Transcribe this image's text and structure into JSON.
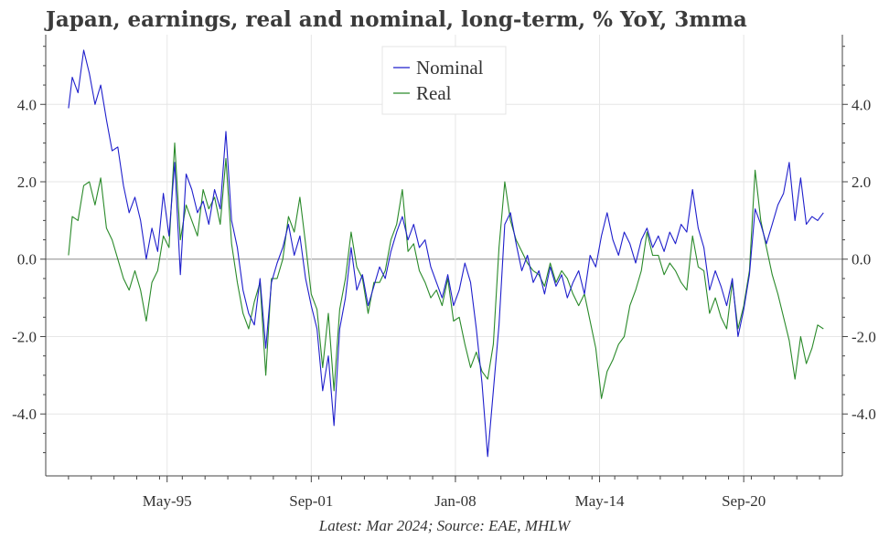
{
  "title": "Japan, earnings, real and nominal, long-term, % YoY, 3mma",
  "source_note": "Latest: Mar 2024; Source: EAE, MHLW",
  "chart_data": {
    "type": "line",
    "title": "Japan, earnings, real and nominal, long-term, % YoY, 3mma",
    "xlabel": "",
    "ylabel": "",
    "x_tick_labels": [
      "May-95",
      "Sep-01",
      "Jan-08",
      "May-14",
      "Sep-20"
    ],
    "x_tick_values": [
      "1995-05",
      "2001-09",
      "2008-01",
      "2014-05",
      "2020-09"
    ],
    "x_range": [
      "1990-01",
      "2025-01"
    ],
    "ylim": [
      -5.6,
      5.8
    ],
    "y_ticks": [
      -4.0,
      -2.0,
      0.0,
      2.0,
      4.0
    ],
    "y_tick_labels": [
      "-4.0",
      "-2.0",
      "0.0",
      "2.0",
      "4.0"
    ],
    "y_axis_sides": "left and right",
    "grid": true,
    "zero_line": true,
    "legend_position": "top-center",
    "series": [
      {
        "name": "Nominal",
        "color": "#1f1fcc",
        "points": [
          [
            "1991-01",
            3.9
          ],
          [
            "1991-03",
            4.7
          ],
          [
            "1991-06",
            4.3
          ],
          [
            "1991-09",
            5.4
          ],
          [
            "1991-12",
            4.8
          ],
          [
            "1992-03",
            4.0
          ],
          [
            "1992-06",
            4.5
          ],
          [
            "1992-09",
            3.6
          ],
          [
            "1992-12",
            2.8
          ],
          [
            "1993-03",
            2.9
          ],
          [
            "1993-06",
            1.9
          ],
          [
            "1993-09",
            1.2
          ],
          [
            "1993-12",
            1.6
          ],
          [
            "1994-03",
            1.0
          ],
          [
            "1994-06",
            0.0
          ],
          [
            "1994-09",
            0.8
          ],
          [
            "1994-12",
            0.2
          ],
          [
            "1995-03",
            1.7
          ],
          [
            "1995-06",
            0.6
          ],
          [
            "1995-09",
            2.5
          ],
          [
            "1995-12",
            -0.4
          ],
          [
            "1996-03",
            2.2
          ],
          [
            "1996-06",
            1.8
          ],
          [
            "1996-09",
            1.2
          ],
          [
            "1996-12",
            1.5
          ],
          [
            "1997-03",
            0.9
          ],
          [
            "1997-06",
            1.8
          ],
          [
            "1997-09",
            1.3
          ],
          [
            "1997-12",
            3.3
          ],
          [
            "1998-03",
            1.0
          ],
          [
            "1998-06",
            0.3
          ],
          [
            "1998-09",
            -0.8
          ],
          [
            "1998-12",
            -1.4
          ],
          [
            "1999-03",
            -1.7
          ],
          [
            "1999-06",
            -0.5
          ],
          [
            "1999-09",
            -2.3
          ],
          [
            "1999-12",
            -0.6
          ],
          [
            "2000-03",
            -0.1
          ],
          [
            "2000-06",
            0.3
          ],
          [
            "2000-09",
            0.9
          ],
          [
            "2000-12",
            0.1
          ],
          [
            "2001-03",
            0.6
          ],
          [
            "2001-06",
            -0.5
          ],
          [
            "2001-09",
            -1.2
          ],
          [
            "2001-12",
            -1.8
          ],
          [
            "2002-03",
            -3.4
          ],
          [
            "2002-06",
            -2.5
          ],
          [
            "2002-09",
            -4.3
          ],
          [
            "2002-12",
            -1.8
          ],
          [
            "2003-03",
            -1.0
          ],
          [
            "2003-06",
            0.3
          ],
          [
            "2003-09",
            -0.8
          ],
          [
            "2003-12",
            -0.4
          ],
          [
            "2004-03",
            -1.2
          ],
          [
            "2004-06",
            -0.7
          ],
          [
            "2004-09",
            -0.2
          ],
          [
            "2004-12",
            -0.5
          ],
          [
            "2005-03",
            0.2
          ],
          [
            "2005-06",
            0.7
          ],
          [
            "2005-09",
            1.1
          ],
          [
            "2005-12",
            0.5
          ],
          [
            "2006-03",
            0.9
          ],
          [
            "2006-06",
            0.3
          ],
          [
            "2006-09",
            0.5
          ],
          [
            "2006-12",
            -0.2
          ],
          [
            "2007-03",
            -0.6
          ],
          [
            "2007-06",
            -1.0
          ],
          [
            "2007-09",
            -0.4
          ],
          [
            "2007-12",
            -1.2
          ],
          [
            "2008-03",
            -0.8
          ],
          [
            "2008-06",
            -0.1
          ],
          [
            "2008-09",
            -0.6
          ],
          [
            "2008-12",
            -1.8
          ],
          [
            "2009-03",
            -3.2
          ],
          [
            "2009-06",
            -5.1
          ],
          [
            "2009-09",
            -3.4
          ],
          [
            "2009-12",
            -1.7
          ],
          [
            "2010-03",
            0.9
          ],
          [
            "2010-06",
            1.2
          ],
          [
            "2010-09",
            0.4
          ],
          [
            "2010-12",
            -0.3
          ],
          [
            "2011-03",
            0.1
          ],
          [
            "2011-06",
            -0.6
          ],
          [
            "2011-09",
            -0.3
          ],
          [
            "2011-12",
            -0.9
          ],
          [
            "2012-03",
            -0.2
          ],
          [
            "2012-06",
            -0.7
          ],
          [
            "2012-09",
            -0.4
          ],
          [
            "2012-12",
            -1.0
          ],
          [
            "2013-03",
            -0.6
          ],
          [
            "2013-06",
            -0.3
          ],
          [
            "2013-09",
            -0.9
          ],
          [
            "2013-12",
            0.1
          ],
          [
            "2014-03",
            -0.2
          ],
          [
            "2014-06",
            0.6
          ],
          [
            "2014-09",
            1.2
          ],
          [
            "2014-12",
            0.5
          ],
          [
            "2015-03",
            0.1
          ],
          [
            "2015-06",
            0.7
          ],
          [
            "2015-09",
            0.4
          ],
          [
            "2015-12",
            -0.1
          ],
          [
            "2016-03",
            0.5
          ],
          [
            "2016-06",
            0.8
          ],
          [
            "2016-09",
            0.3
          ],
          [
            "2016-12",
            0.6
          ],
          [
            "2017-03",
            0.2
          ],
          [
            "2017-06",
            0.7
          ],
          [
            "2017-09",
            0.4
          ],
          [
            "2017-12",
            0.9
          ],
          [
            "2018-03",
            0.7
          ],
          [
            "2018-06",
            1.8
          ],
          [
            "2018-09",
            0.8
          ],
          [
            "2018-12",
            0.3
          ],
          [
            "2019-03",
            -0.8
          ],
          [
            "2019-06",
            -0.3
          ],
          [
            "2019-09",
            -0.7
          ],
          [
            "2019-12",
            -1.2
          ],
          [
            "2020-03",
            -0.5
          ],
          [
            "2020-06",
            -2.0
          ],
          [
            "2020-09",
            -1.3
          ],
          [
            "2020-12",
            -0.4
          ],
          [
            "2021-03",
            1.3
          ],
          [
            "2021-06",
            0.9
          ],
          [
            "2021-09",
            0.4
          ],
          [
            "2021-12",
            0.9
          ],
          [
            "2022-03",
            1.4
          ],
          [
            "2022-06",
            1.7
          ],
          [
            "2022-09",
            2.5
          ],
          [
            "2022-12",
            1.0
          ],
          [
            "2023-03",
            2.1
          ],
          [
            "2023-06",
            0.9
          ],
          [
            "2023-09",
            1.1
          ],
          [
            "2023-12",
            1.0
          ],
          [
            "2024-03",
            1.2
          ]
        ]
      },
      {
        "name": "Real",
        "color": "#2a8a2a",
        "points": [
          [
            "1991-01",
            0.1
          ],
          [
            "1991-03",
            1.1
          ],
          [
            "1991-06",
            1.0
          ],
          [
            "1991-09",
            1.9
          ],
          [
            "1991-12",
            2.0
          ],
          [
            "1992-03",
            1.4
          ],
          [
            "1992-06",
            2.1
          ],
          [
            "1992-09",
            0.8
          ],
          [
            "1992-12",
            0.5
          ],
          [
            "1993-03",
            0.0
          ],
          [
            "1993-06",
            -0.5
          ],
          [
            "1993-09",
            -0.8
          ],
          [
            "1993-12",
            -0.3
          ],
          [
            "1994-03",
            -0.8
          ],
          [
            "1994-06",
            -1.6
          ],
          [
            "1994-09",
            -0.6
          ],
          [
            "1994-12",
            -0.3
          ],
          [
            "1995-03",
            0.6
          ],
          [
            "1995-06",
            0.3
          ],
          [
            "1995-09",
            3.0
          ],
          [
            "1995-12",
            0.5
          ],
          [
            "1996-03",
            1.4
          ],
          [
            "1996-06",
            1.0
          ],
          [
            "1996-09",
            0.6
          ],
          [
            "1996-12",
            1.8
          ],
          [
            "1997-03",
            1.3
          ],
          [
            "1997-06",
            1.6
          ],
          [
            "1997-09",
            0.9
          ],
          [
            "1997-12",
            2.6
          ],
          [
            "1998-03",
            0.4
          ],
          [
            "1998-06",
            -0.6
          ],
          [
            "1998-09",
            -1.4
          ],
          [
            "1998-12",
            -1.8
          ],
          [
            "1999-03",
            -1.1
          ],
          [
            "1999-06",
            -0.6
          ],
          [
            "1999-09",
            -3.0
          ],
          [
            "1999-12",
            -0.5
          ],
          [
            "2000-03",
            -0.5
          ],
          [
            "2000-06",
            0.0
          ],
          [
            "2000-09",
            1.1
          ],
          [
            "2000-12",
            0.7
          ],
          [
            "2001-03",
            1.6
          ],
          [
            "2001-06",
            0.4
          ],
          [
            "2001-09",
            -0.9
          ],
          [
            "2001-12",
            -1.3
          ],
          [
            "2002-03",
            -2.8
          ],
          [
            "2002-06",
            -1.4
          ],
          [
            "2002-09",
            -3.4
          ],
          [
            "2002-12",
            -1.3
          ],
          [
            "2003-03",
            -0.5
          ],
          [
            "2003-06",
            0.7
          ],
          [
            "2003-09",
            -0.2
          ],
          [
            "2003-12",
            -0.5
          ],
          [
            "2004-03",
            -1.4
          ],
          [
            "2004-06",
            -0.6
          ],
          [
            "2004-09",
            -0.6
          ],
          [
            "2004-12",
            -0.3
          ],
          [
            "2005-03",
            0.5
          ],
          [
            "2005-06",
            0.9
          ],
          [
            "2005-09",
            1.8
          ],
          [
            "2005-12",
            0.2
          ],
          [
            "2006-03",
            0.4
          ],
          [
            "2006-06",
            -0.3
          ],
          [
            "2006-09",
            -0.6
          ],
          [
            "2006-12",
            -1.0
          ],
          [
            "2007-03",
            -0.8
          ],
          [
            "2007-06",
            -1.2
          ],
          [
            "2007-09",
            -0.5
          ],
          [
            "2007-12",
            -1.6
          ],
          [
            "2008-03",
            -1.5
          ],
          [
            "2008-06",
            -2.2
          ],
          [
            "2008-09",
            -2.8
          ],
          [
            "2008-12",
            -2.4
          ],
          [
            "2009-03",
            -2.9
          ],
          [
            "2009-06",
            -3.1
          ],
          [
            "2009-09",
            -2.2
          ],
          [
            "2009-12",
            0.3
          ],
          [
            "2010-03",
            2.0
          ],
          [
            "2010-06",
            1.0
          ],
          [
            "2010-09",
            0.5
          ],
          [
            "2010-12",
            0.2
          ],
          [
            "2011-03",
            -0.1
          ],
          [
            "2011-06",
            -0.3
          ],
          [
            "2011-09",
            -0.4
          ],
          [
            "2011-12",
            -0.7
          ],
          [
            "2012-03",
            -0.1
          ],
          [
            "2012-06",
            -0.6
          ],
          [
            "2012-09",
            -0.3
          ],
          [
            "2012-12",
            -0.5
          ],
          [
            "2013-03",
            -0.9
          ],
          [
            "2013-06",
            -1.2
          ],
          [
            "2013-09",
            -0.9
          ],
          [
            "2013-12",
            -1.6
          ],
          [
            "2014-03",
            -2.3
          ],
          [
            "2014-06",
            -3.6
          ],
          [
            "2014-09",
            -2.9
          ],
          [
            "2014-12",
            -2.6
          ],
          [
            "2015-03",
            -2.2
          ],
          [
            "2015-06",
            -2.0
          ],
          [
            "2015-09",
            -1.2
          ],
          [
            "2015-12",
            -0.8
          ],
          [
            "2016-03",
            -0.3
          ],
          [
            "2016-06",
            0.7
          ],
          [
            "2016-09",
            0.1
          ],
          [
            "2016-12",
            0.1
          ],
          [
            "2017-03",
            -0.4
          ],
          [
            "2017-06",
            -0.1
          ],
          [
            "2017-09",
            -0.3
          ],
          [
            "2017-12",
            -0.6
          ],
          [
            "2018-03",
            -0.8
          ],
          [
            "2018-06",
            0.6
          ],
          [
            "2018-09",
            -0.2
          ],
          [
            "2018-12",
            -0.3
          ],
          [
            "2019-03",
            -1.4
          ],
          [
            "2019-06",
            -1.0
          ],
          [
            "2019-09",
            -1.5
          ],
          [
            "2019-12",
            -1.8
          ],
          [
            "2020-03",
            -0.6
          ],
          [
            "2020-06",
            -1.8
          ],
          [
            "2020-09",
            -1.2
          ],
          [
            "2020-12",
            -0.3
          ],
          [
            "2021-03",
            2.3
          ],
          [
            "2021-06",
            1.0
          ],
          [
            "2021-09",
            0.3
          ],
          [
            "2021-12",
            -0.4
          ],
          [
            "2022-03",
            -0.9
          ],
          [
            "2022-06",
            -1.5
          ],
          [
            "2022-09",
            -2.1
          ],
          [
            "2022-12",
            -3.1
          ],
          [
            "2023-03",
            -2.0
          ],
          [
            "2023-06",
            -2.7
          ],
          [
            "2023-09",
            -2.3
          ],
          [
            "2023-12",
            -1.7
          ],
          [
            "2024-03",
            -1.8
          ]
        ]
      }
    ]
  }
}
